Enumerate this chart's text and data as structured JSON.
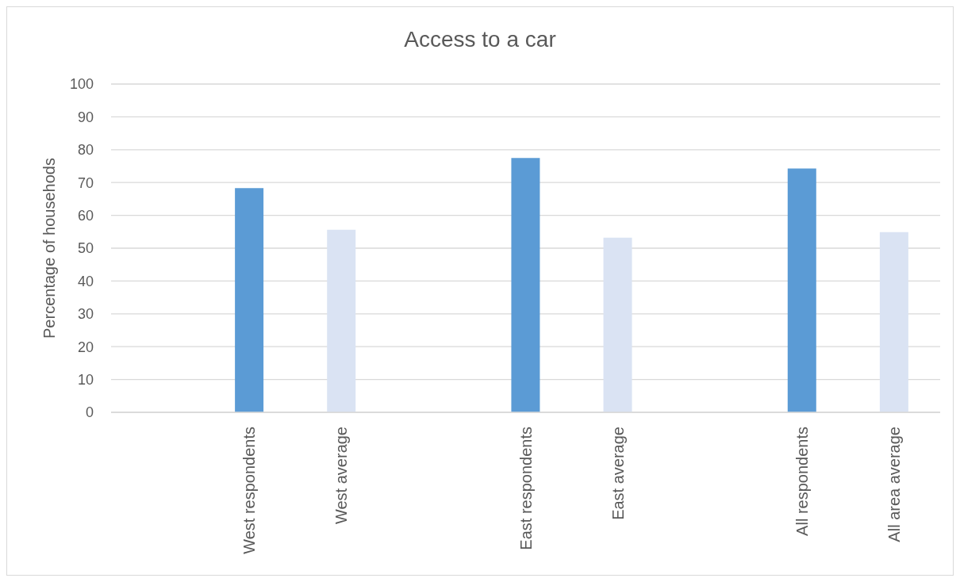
{
  "chart_data": {
    "type": "bar",
    "title": "Access to a car",
    "ylabel": "Percentage of househods",
    "categories": [
      null,
      "West respondents",
      "West average",
      null,
      "East respondents",
      "East average",
      null,
      "All respondents",
      "All area average"
    ],
    "values": [
      null,
      68.3,
      55.6,
      null,
      77.5,
      53.2,
      null,
      74.3,
      54.9
    ],
    "colors": [
      null,
      "#5b9bd5",
      "#dae3f3",
      null,
      "#5b9bd5",
      "#dae3f3",
      null,
      "#5b9bd5",
      "#dae3f3"
    ],
    "ylim": [
      0,
      100
    ],
    "yticks": [
      0,
      10,
      20,
      30,
      40,
      50,
      60,
      70,
      80,
      90,
      100
    ],
    "grid": "y"
  }
}
